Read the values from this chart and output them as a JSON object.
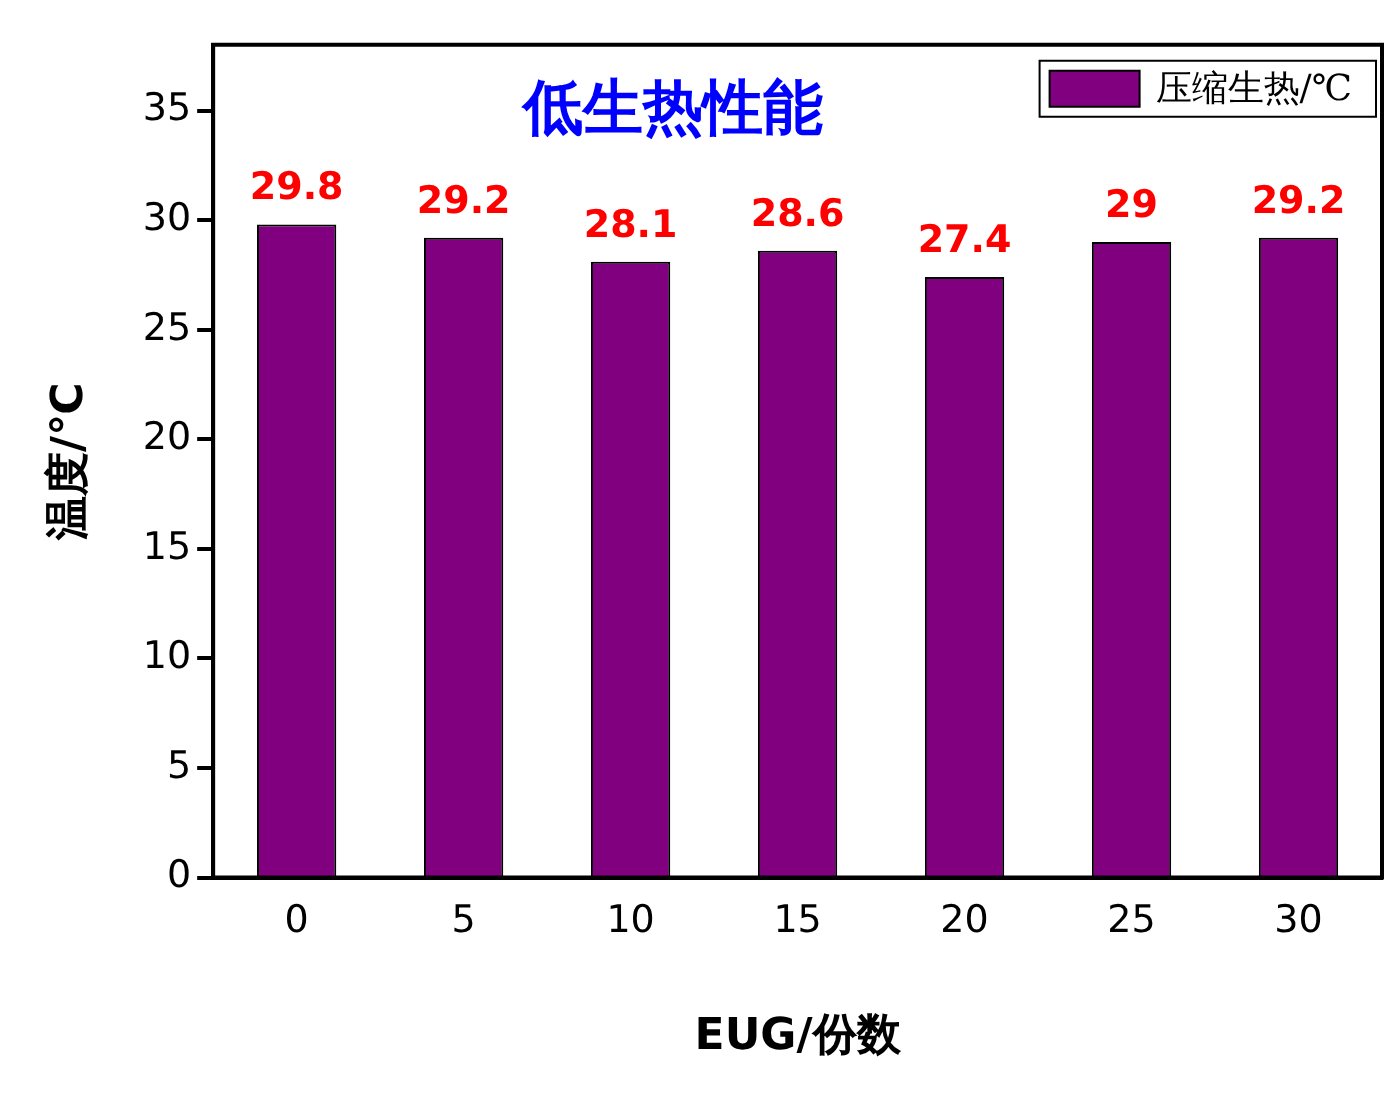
{
  "chart_data": {
    "type": "bar",
    "title": "低生热性能",
    "xlabel": "EUG/份数",
    "ylabel": "温度/℃",
    "categories": [
      "0",
      "5",
      "10",
      "15",
      "20",
      "25",
      "30"
    ],
    "series": [
      {
        "name": "压缩生热/℃",
        "color": "#800080",
        "values": [
          29.8,
          29.2,
          28.1,
          28.6,
          27.4,
          29,
          29.2
        ]
      }
    ],
    "ylim": [
      0,
      38
    ],
    "yticks": [
      0,
      5,
      10,
      15,
      20,
      25,
      30,
      35
    ],
    "data_labels": true,
    "legend": "top right",
    "grid": false
  }
}
